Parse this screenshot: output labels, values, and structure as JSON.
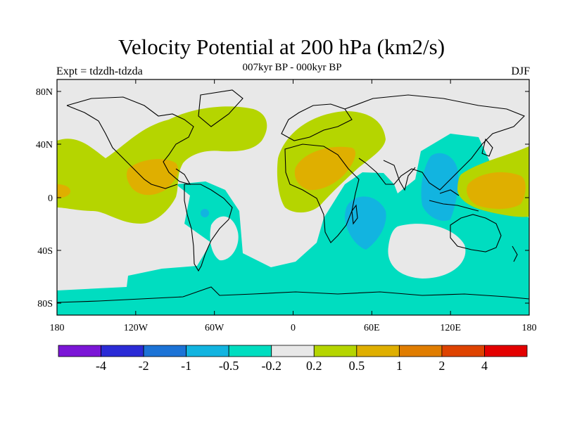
{
  "header": {
    "title": "Velocity Potential at 200 hPa (km2/s)",
    "subtitle": "007kyr BP - 000kyr BP",
    "left_label": "Expt = tdzdh-tdzda",
    "right_label": "DJF"
  },
  "map": {
    "lat_ticks": [
      "80N",
      "40N",
      "0",
      "40S",
      "80S"
    ],
    "lon_ticks": [
      "180",
      "120W",
      "60W",
      "0",
      "60E",
      "120E",
      "180"
    ]
  },
  "colorbar": {
    "colors": [
      "#7b16d6",
      "#2b2bd6",
      "#1c73d6",
      "#12b4e0",
      "#00ddc0",
      "#e8e8e8",
      "#b5d500",
      "#dfaf00",
      "#e07d00",
      "#de4300",
      "#e30000"
    ],
    "labels": [
      "-4",
      "-2",
      "-1",
      "-0.5",
      "-0.2",
      "0.2",
      "0.5",
      "1",
      "2",
      "4"
    ]
  },
  "field_colors": {
    "neutral": "#e8e8e8",
    "pos_1": "#b5d500",
    "pos_2": "#dfaf00",
    "neg_1": "#00ddc0",
    "neg_2": "#12b4e0"
  }
}
